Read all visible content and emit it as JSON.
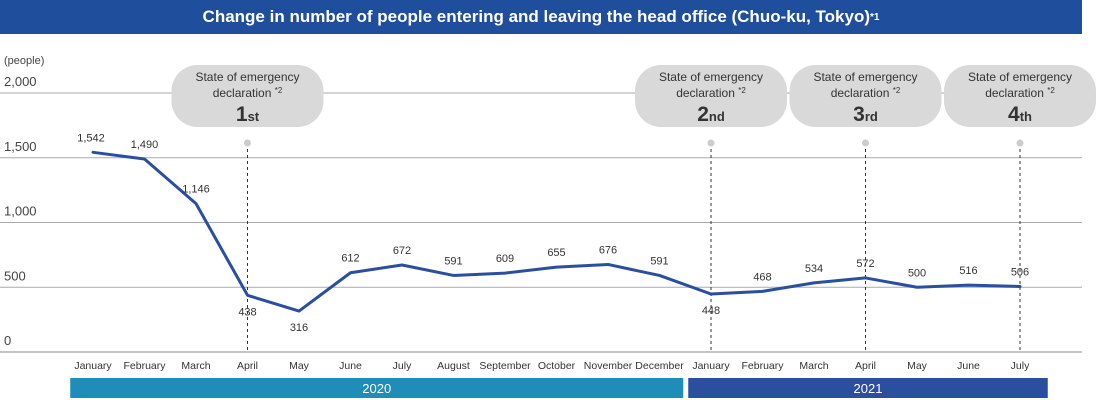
{
  "title": {
    "text": "Change in number of people entering and leaving the head office (Chuo-ku, Tokyo)",
    "note": "*1"
  },
  "colors": {
    "line": "#2a4f9f",
    "title_bg": "#1f4e9c",
    "year_2020": "#1e8db7",
    "year_2021": "#2a4f9f",
    "bubble": "#d9d9d9",
    "grid": "#aaaaaa"
  },
  "chart_data": {
    "type": "line",
    "ylabel": "(people)",
    "ylim": [
      0,
      2000
    ],
    "y_ticks": [
      {
        "value": 2000,
        "label": "2,000"
      },
      {
        "value": 1500,
        "label": "1,500"
      },
      {
        "value": 1000,
        "label": "1,000"
      },
      {
        "value": 500,
        "label": "500"
      },
      {
        "value": 0,
        "label": "0"
      }
    ],
    "categories": [
      "January",
      "February",
      "March",
      "April",
      "May",
      "June",
      "July",
      "August",
      "September",
      "October",
      "November",
      "December",
      "January",
      "February",
      "March",
      "April",
      "May",
      "June",
      "July"
    ],
    "years": [
      {
        "label": "2020",
        "months": 12
      },
      {
        "label": "2021",
        "months": 7
      }
    ],
    "series": [
      {
        "values": [
          1542,
          1490,
          1146,
          438,
          316,
          612,
          672,
          591,
          609,
          655,
          676,
          591,
          448,
          468,
          534,
          572,
          500,
          516,
          506
        ],
        "labels": [
          "1,542",
          "1,490",
          "1,146",
          "438",
          "316",
          "612",
          "672",
          "591",
          "609",
          "655",
          "676",
          "591",
          "448",
          "468",
          "534",
          "572",
          "500",
          "516",
          "506"
        ]
      }
    ],
    "annotations": [
      {
        "month_index": 3,
        "line1": "State of emergency",
        "line2": "declaration",
        "note": "*2",
        "number": "1",
        "suffix": "st"
      },
      {
        "month_index": 12,
        "line1": "State of emergency",
        "line2": "declaration",
        "note": "*2",
        "number": "2",
        "suffix": "nd"
      },
      {
        "month_index": 15,
        "line1": "State of emergency",
        "line2": "declaration",
        "note": "*2",
        "number": "3",
        "suffix": "rd"
      },
      {
        "month_index": 18,
        "line1": "State of emergency",
        "line2": "declaration",
        "note": "*2",
        "number": "4",
        "suffix": "th"
      }
    ],
    "grid": true,
    "legend": "none"
  }
}
